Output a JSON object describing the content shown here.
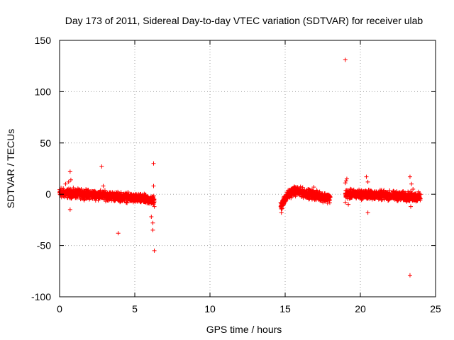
{
  "chart_data": {
    "type": "scatter",
    "title": "Day 173 of 2011, Sidereal Day-to-day VTEC variation (SDTVAR) for receiver ulab",
    "xlabel": "GPS time / hours",
    "ylabel": "SDTVAR / TECUs",
    "xlim": [
      0,
      25
    ],
    "ylim": [
      -100,
      150
    ],
    "xticks": [
      0,
      5,
      10,
      15,
      20,
      25
    ],
    "yticks": [
      -100,
      -50,
      0,
      50,
      100,
      150
    ],
    "grid": true,
    "marker": "+",
    "color": "#ff0000",
    "segments": [
      {
        "t_start": 0.0,
        "t_end": 6.3,
        "mean_start": 1,
        "mean_end": -6,
        "spread": 3
      },
      {
        "t_start": 14.7,
        "t_end": 18.0,
        "mean_start": -12,
        "mean_end": -4,
        "spread": 3,
        "shape": "rise_then_flat"
      },
      {
        "t_start": 19.0,
        "t_end": 24.0,
        "mean_start": 0,
        "mean_end": -3,
        "spread": 3
      }
    ],
    "series": [
      {
        "name": "SDTVAR",
        "x": [
          0.1,
          0.4,
          0.6,
          0.7,
          0.7,
          0.75,
          2.8,
          2.9,
          3.9,
          6.1,
          6.2,
          6.2,
          6.25,
          6.25,
          6.3,
          6.3,
          14.75,
          14.8,
          14.9,
          16.9,
          19.0,
          19.0,
          19.05,
          19.1,
          19.2,
          20.4,
          20.5,
          20.5,
          23.3,
          23.3,
          23.35,
          23.4,
          23.5,
          19.0
        ],
        "y": [
          6,
          10,
          12,
          22,
          -15,
          14,
          27,
          8,
          -38,
          -22,
          -28,
          -35,
          30,
          8,
          -55,
          -12,
          -18,
          -14,
          -10,
          7,
          11,
          -8,
          13,
          15,
          -10,
          17,
          -18,
          12,
          17,
          -79,
          -12,
          10,
          5,
          131
        ]
      }
    ]
  }
}
